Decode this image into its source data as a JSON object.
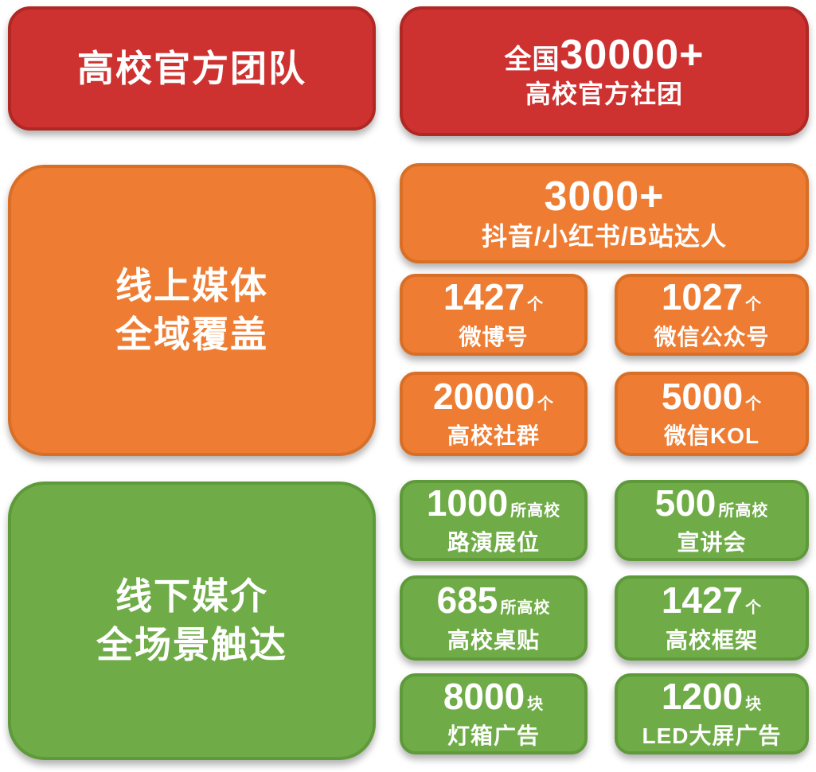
{
  "colors": {
    "background": "#ffffff",
    "red": "#ce3230",
    "red_dark": "#b02823",
    "orange": "#ee7d33",
    "orange_dark": "#d96f26",
    "green": "#6fac47",
    "green_dark": "#5f9a3a",
    "text": "#ffffff"
  },
  "official_team": {
    "header": "高校官方团队",
    "stat": {
      "prefix": "全国",
      "number": "30000+",
      "label": "高校官方社团"
    }
  },
  "online_media": {
    "header_line1": "线上媒体",
    "header_line2": "全域覆盖",
    "featured": {
      "number": "3000+",
      "label": "抖音/小红书/B站达人"
    },
    "cards": [
      {
        "number": "1427",
        "unit": "个",
        "label": "微博号"
      },
      {
        "number": "1027",
        "unit": "个",
        "label": "微信公众号"
      },
      {
        "number": "20000",
        "unit": "个",
        "label": "高校社群"
      },
      {
        "number": "5000",
        "unit": "个",
        "label": "微信KOL"
      }
    ]
  },
  "offline_media": {
    "header_line1": "线下媒介",
    "header_line2": "全场景触达",
    "cards": [
      {
        "number": "1000",
        "unit": "所高校",
        "label": "路演展位"
      },
      {
        "number": "500",
        "unit": "所高校",
        "label": "宣讲会"
      },
      {
        "number": "685",
        "unit": "所高校",
        "label": "高校桌贴"
      },
      {
        "number": "1427",
        "unit": "个",
        "label": "高校框架"
      },
      {
        "number": "8000",
        "unit": "块",
        "label": "灯箱广告"
      },
      {
        "number": "1200",
        "unit": "块",
        "label": "LED大屏广告"
      }
    ]
  }
}
